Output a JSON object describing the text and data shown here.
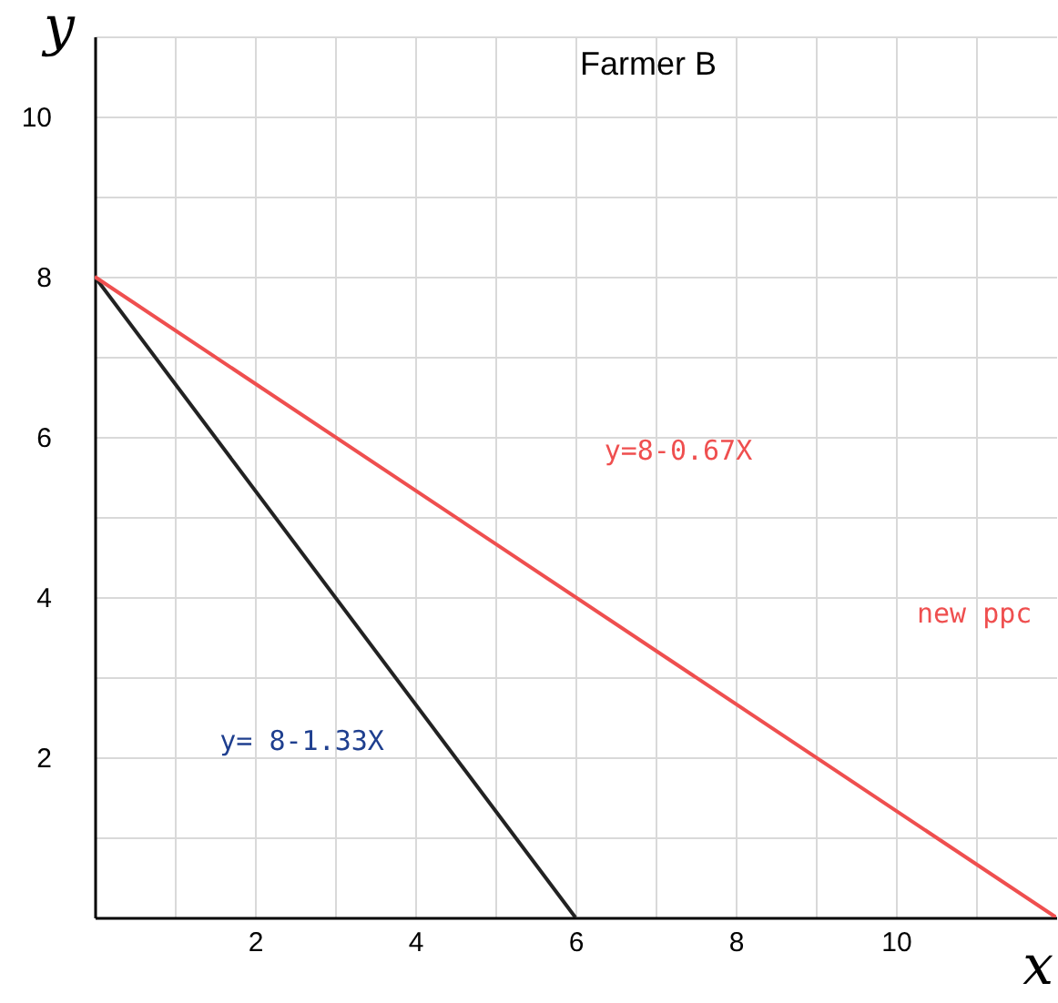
{
  "chart_data": {
    "type": "line",
    "title": "Farmer B",
    "xlabel": "x",
    "ylabel": "y",
    "xlim": [
      0,
      12
    ],
    "ylim": [
      0,
      11
    ],
    "xticks": [
      {
        "value": 1,
        "label": null
      },
      2,
      {
        "value": 3,
        "label": null
      },
      4,
      {
        "value": 5,
        "label": null
      },
      6,
      {
        "value": 7,
        "label": null
      },
      8,
      {
        "value": 9,
        "label": null
      },
      10,
      {
        "value": 11,
        "label": null
      }
    ],
    "yticks": [
      {
        "value": 1,
        "label": null
      },
      2,
      {
        "value": 3,
        "label": null
      },
      4,
      {
        "value": 5,
        "label": null
      },
      6,
      {
        "value": 7,
        "label": null
      },
      8,
      {
        "value": 9,
        "label": null
      },
      10,
      {
        "value": 11,
        "label": null
      }
    ],
    "grid": true,
    "series": [
      {
        "color": "#222222",
        "x": [
          0,
          6
        ],
        "values": [
          8,
          0
        ]
      },
      {
        "color": "#ef4f4f",
        "x": [
          0,
          12
        ],
        "values": [
          8,
          0
        ]
      }
    ],
    "annotations": [
      "y=8-0.67X",
      "new ppc",
      "y= 8-1.33X"
    ]
  }
}
